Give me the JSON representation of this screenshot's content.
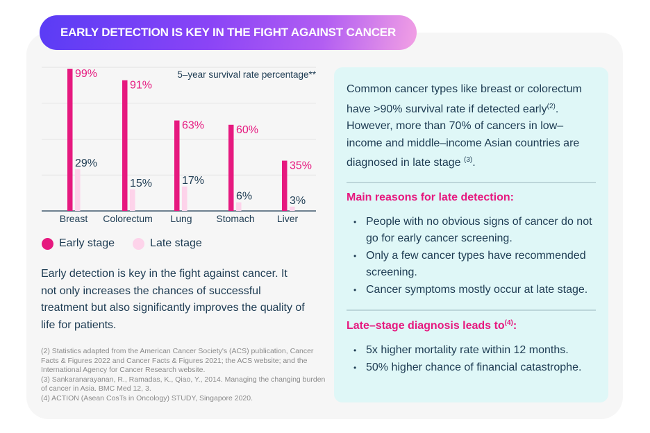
{
  "title": "EARLY DETECTION IS KEY IN THE FIGHT AGAINST CANCER",
  "chart_data": {
    "type": "bar",
    "title": "5–year survival rate percentage**",
    "categories": [
      "Breast",
      "Colorectum",
      "Lung",
      "Stomach",
      "Liver"
    ],
    "series": [
      {
        "name": "Early stage",
        "values": [
          99,
          91,
          63,
          60,
          35
        ],
        "labels": [
          "99%",
          "91%",
          "63%",
          "60%",
          "35%"
        ]
      },
      {
        "name": "Late stage",
        "values": [
          29,
          15,
          17,
          6,
          3
        ],
        "labels": [
          "29%",
          "15%",
          "17%",
          "6%",
          "3%"
        ]
      }
    ],
    "ylim": [
      0,
      100
    ],
    "grid": true,
    "colors": {
      "early": "#e6197f",
      "late": "#fdd3ea"
    }
  },
  "legend": {
    "early": "Early stage",
    "late": "Late stage"
  },
  "description": "Early detection is key in the fight against cancer. It not only increases the chances of successful treatment but also significantly improves the quality of life for patients.",
  "footnotes": [
    "(2) Statistics adapted from the American Cancer Society's (ACS) publication, Cancer Facts & Figures 2022 and Cancer Facts & Figures 2021;  the ACS website; and the International Agency for Cancer Research website.",
    "(3) Sankaranarayanan, R., Ramadas, K., Qiao, Y., 2014. Managing the changing burden of cancer in Asia. BMC Med 12, 3.",
    "(4) ACTION (Asean CosTs in Oncology) STUDY, Singapore 2020."
  ],
  "panel": {
    "intro_a": "Common cancer types like breast or colorectum have >90% survival rate if detected early",
    "intro_sup1": "(2)",
    "intro_b": ". However, more than 70% of cancers in low–income and middle–income Asian countries are diagnosed in late stage ",
    "intro_sup2": "(3)",
    "intro_c": ".",
    "reasons_heading": "Main reasons for late detection:",
    "reasons": [
      "People with no obvious signs of cancer do not go for early cancer screening.",
      "Only a few cancer types have recommended screening.",
      "Cancer symptoms mostly occur at late stage."
    ],
    "leads_heading": "Late–stage diagnosis leads to",
    "leads_sup": "(4)",
    "leads_colon": ":",
    "leads": [
      "5x higher mortality rate within 12 months.",
      "50% higher chance of financial catastrophe."
    ]
  }
}
